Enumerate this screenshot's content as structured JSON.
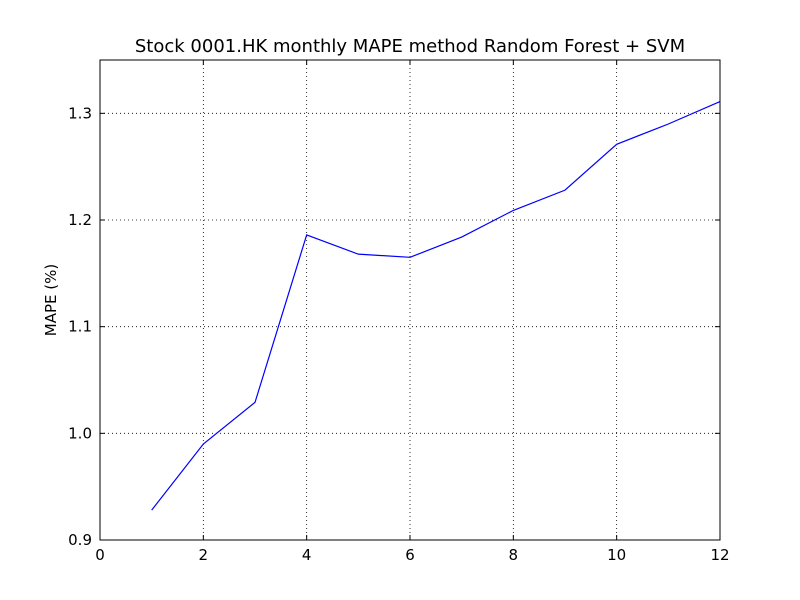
{
  "chart_data": {
    "type": "line",
    "title": "Stock 0001.HK monthly MAPE method Random Forest + SVM",
    "xlabel": "",
    "ylabel": "MAPE (%)",
    "xlim": [
      0,
      12
    ],
    "ylim": [
      0.9,
      1.35
    ],
    "xticks": [
      0,
      2,
      4,
      6,
      8,
      10,
      12
    ],
    "xtick_labels": [
      "0",
      "2",
      "4",
      "6",
      "8",
      "10",
      "12"
    ],
    "yticks": [
      0.9,
      1.0,
      1.1,
      1.2,
      1.3
    ],
    "ytick_labels": [
      "0.9",
      "1.0",
      "1.1",
      "1.2",
      "1.3"
    ],
    "grid": true,
    "series": [
      {
        "color": "#0000ff",
        "x": [
          1,
          2,
          3,
          4,
          5,
          6,
          7,
          8,
          9,
          10,
          11,
          12
        ],
        "y": [
          0.928,
          0.99,
          1.029,
          1.186,
          1.168,
          1.165,
          1.184,
          1.209,
          1.228,
          1.271,
          1.29,
          1.311
        ]
      }
    ]
  }
}
